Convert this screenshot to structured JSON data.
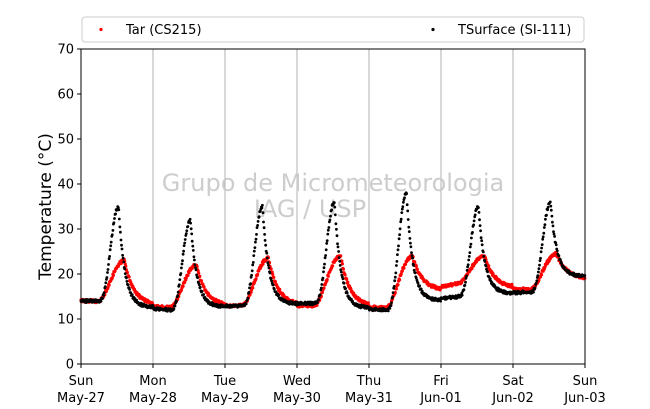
{
  "chart_data": {
    "type": "scatter",
    "ylabel": "Temperature (°C)",
    "ylim": [
      0,
      70
    ],
    "yticks": [
      0,
      10,
      20,
      30,
      40,
      50,
      60,
      70
    ],
    "xlim_days": [
      0,
      7
    ],
    "xticks": [
      {
        "day": "Sun",
        "date": "May-27"
      },
      {
        "day": "Mon",
        "date": "May-28"
      },
      {
        "day": "Tue",
        "date": "May-29"
      },
      {
        "day": "Wed",
        "date": "May-30"
      },
      {
        "day": "Thu",
        "date": "May-31"
      },
      {
        "day": "Fri",
        "date": "Jun-01"
      },
      {
        "day": "Sat",
        "date": "Jun-02"
      },
      {
        "day": "Sun",
        "date": "Jun-03"
      }
    ],
    "grid": "vertical",
    "legend": "top",
    "watermark": [
      "Grupo de Micrometeorologia",
      "IAG / USP"
    ],
    "series": [
      {
        "name": "Tar (CS215)",
        "color": "#ff0000",
        "daily": [
          {
            "min": 14.0,
            "max": 23.0
          },
          {
            "min": 12.5,
            "max": 22.0
          },
          {
            "min": 13.0,
            "max": 23.5
          },
          {
            "min": 13.0,
            "max": 24.0
          },
          {
            "min": 12.5,
            "max": 24.0
          },
          {
            "min": 18.0,
            "max": 24.0
          },
          {
            "min": 16.5,
            "max": 24.5
          },
          {
            "min": 20.0,
            "max": 22.0
          }
        ]
      },
      {
        "name": "TSurface (SI-111)",
        "color": "#000000",
        "daily": [
          {
            "min": 14.0,
            "max": 35.0
          },
          {
            "min": 12.0,
            "max": 32.0
          },
          {
            "min": 13.0,
            "max": 35.0
          },
          {
            "min": 13.5,
            "max": 36.0
          },
          {
            "min": 12.0,
            "max": 38.0
          },
          {
            "min": 15.0,
            "max": 35.0
          },
          {
            "min": 16.0,
            "max": 36.0
          },
          {
            "min": 21.0,
            "max": 22.0
          }
        ]
      }
    ]
  }
}
